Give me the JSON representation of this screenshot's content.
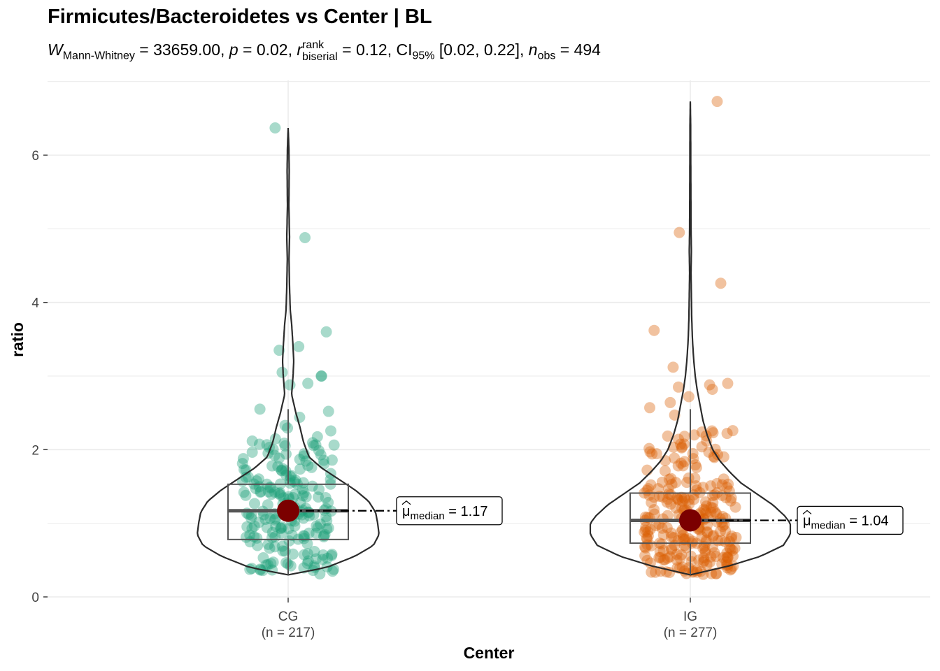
{
  "chart_data": {
    "type": "violin",
    "title": "Firmicutes/Bacteroidetes vs Center | BL",
    "subtitle": {
      "W_label": "W",
      "W_sub": "Mann-Whitney",
      "W_value": "= 33659.00,",
      "p_label": "p",
      "p_value": "= 0.02,",
      "r_label": "r",
      "r_sup": "rank",
      "r_sub": "biserial",
      "r_value": "= 0.12,",
      "ci_label": "CI",
      "ci_sub": "95%",
      "ci_value": "[0.02, 0.22],",
      "n_label": "n",
      "n_sub": "obs",
      "n_value": "= 494"
    },
    "xlabel": "Center",
    "ylabel": "ratio",
    "ylim": [
      0,
      7
    ],
    "yticks": [
      0,
      2,
      4,
      6
    ],
    "grid": true,
    "categories": [
      "CG",
      "IG"
    ],
    "category_counts": [
      "(n = 217)",
      "(n = 277)"
    ],
    "colors": [
      "#1b9e77",
      "#d95f02"
    ],
    "median_marker_color": "#7b0000",
    "boxplot": [
      {
        "group": "CG",
        "q1": 0.78,
        "median": 1.17,
        "q3": 1.53,
        "whisker_low": 0.3,
        "whisker_high": 2.55
      },
      {
        "group": "IG",
        "q1": 0.73,
        "median": 1.04,
        "q3": 1.41,
        "whisker_low": 0.3,
        "whisker_high": 2.55
      }
    ],
    "median_labels": [
      {
        "group": "CG",
        "symbol": "μ",
        "sub": "median",
        "value": "= 1.17"
      },
      {
        "group": "IG",
        "symbol": "μ",
        "sub": "median",
        "value": "= 1.04"
      }
    ],
    "outliers": [
      {
        "group": "CG",
        "values": [
          6.37,
          4.88,
          3.6,
          3.4,
          3.35,
          3.05,
          3.0,
          3.0,
          2.9,
          2.88,
          2.55,
          2.52,
          2.44,
          2.33
        ]
      },
      {
        "group": "IG",
        "values": [
          6.73,
          4.95,
          4.26,
          3.62,
          3.12,
          2.9,
          2.88,
          2.85,
          2.82,
          2.72,
          2.64,
          2.57,
          2.47
        ]
      }
    ]
  }
}
